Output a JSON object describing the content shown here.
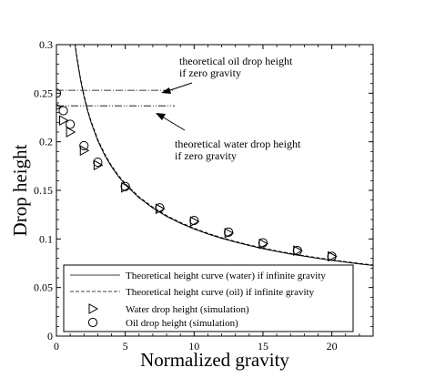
{
  "chart_data": {
    "type": "line",
    "xlabel": "Normalized gravity",
    "ylabel": "Drop height",
    "xlim": [
      0,
      23
    ],
    "ylim": [
      0,
      0.3
    ],
    "x_ticks": [
      0,
      5,
      10,
      15,
      20
    ],
    "y_ticks": [
      0,
      0.05,
      0.1,
      0.15,
      0.2,
      0.25,
      0.3
    ],
    "x_tick_labels": [
      "0",
      "5",
      "10",
      "15",
      "20"
    ],
    "y_tick_labels": [
      "0",
      "0.05",
      "0.1",
      "0.15",
      "0.2",
      "0.25",
      "0.3"
    ],
    "grid": false,
    "legend_position": "bottom-left",
    "legend": {
      "curve_water": "Theoretical height curve (water) if infinite gravity",
      "curve_oil": "Theoretical height curve (oil) if infinite gravity",
      "water_sim": "Water drop height (simulation)",
      "oil_sim": "Oil drop height (simulation)"
    },
    "annotations": {
      "oil_zero_g_line1": "theoretical oil drop height",
      "oil_zero_g_line2": "if zero gravity",
      "water_zero_g_line1": "theoretical water drop height",
      "water_zero_g_line2": "if zero gravity"
    },
    "reference_lines": [
      {
        "series": "oil zero gravity",
        "y": 0.253,
        "x_range": [
          0,
          8.6
        ],
        "style": "dash-dot"
      },
      {
        "series": "water zero gravity",
        "y": 0.237,
        "x_range": [
          0,
          8.6
        ],
        "style": "dash-dot-dot"
      }
    ],
    "series": [
      {
        "name": "Theoretical height curve (water) if infinite gravity",
        "style": "solid",
        "x": [
          1.35,
          1.5,
          1.75,
          2,
          2.25,
          2.5,
          3,
          3.5,
          4,
          4.5,
          5,
          6,
          7,
          8,
          9,
          10,
          11,
          12,
          13,
          14,
          15,
          16,
          17,
          18,
          19,
          20,
          21,
          22,
          23
        ],
        "y": [
          0.3,
          0.2846,
          0.2635,
          0.2465,
          0.2324,
          0.2204,
          0.2012,
          0.1863,
          0.1743,
          0.1643,
          0.1559,
          0.1423,
          0.1318,
          0.1232,
          0.1162,
          0.1102,
          0.1051,
          0.1006,
          0.0967,
          0.0932,
          0.09,
          0.0871,
          0.0845,
          0.0822,
          0.08,
          0.0779,
          0.0761,
          0.0743,
          0.0727
        ]
      },
      {
        "name": "Theoretical height curve (oil) if infinite gravity",
        "style": "dashed",
        "x": [
          1.35,
          1.5,
          1.75,
          2,
          2.25,
          2.5,
          3,
          3.5,
          4,
          4.5,
          5,
          6,
          7,
          8,
          9,
          10,
          11,
          12,
          13,
          14,
          15,
          16,
          17,
          18,
          19,
          20,
          21,
          22,
          23
        ],
        "y": [
          0.302,
          0.2866,
          0.2654,
          0.2482,
          0.234,
          0.2219,
          0.2026,
          0.1876,
          0.1755,
          0.1654,
          0.157,
          0.1433,
          0.1327,
          0.1241,
          0.117,
          0.111,
          0.1058,
          0.1013,
          0.0974,
          0.0938,
          0.0906,
          0.0877,
          0.0851,
          0.0828,
          0.0806,
          0.0785,
          0.0766,
          0.0748,
          0.0732
        ]
      },
      {
        "name": "Water drop height (simulation)",
        "style": "triangle-right",
        "x": [
          0,
          0.5,
          1,
          2,
          3,
          5,
          7.5,
          10,
          12.5,
          15,
          17.5,
          20
        ],
        "y": [
          0.236,
          0.222,
          0.21,
          0.191,
          0.176,
          0.153,
          0.131,
          0.118,
          0.106,
          0.095,
          0.088,
          0.082
        ]
      },
      {
        "name": "Oil drop height (simulation)",
        "style": "circle",
        "x": [
          0,
          0.5,
          1,
          2,
          3,
          5,
          7.5,
          10,
          12.5,
          15,
          17.5,
          20
        ],
        "y": [
          0.25,
          0.232,
          0.218,
          0.196,
          0.179,
          0.154,
          0.132,
          0.119,
          0.107,
          0.096,
          0.088,
          0.082
        ]
      }
    ]
  }
}
